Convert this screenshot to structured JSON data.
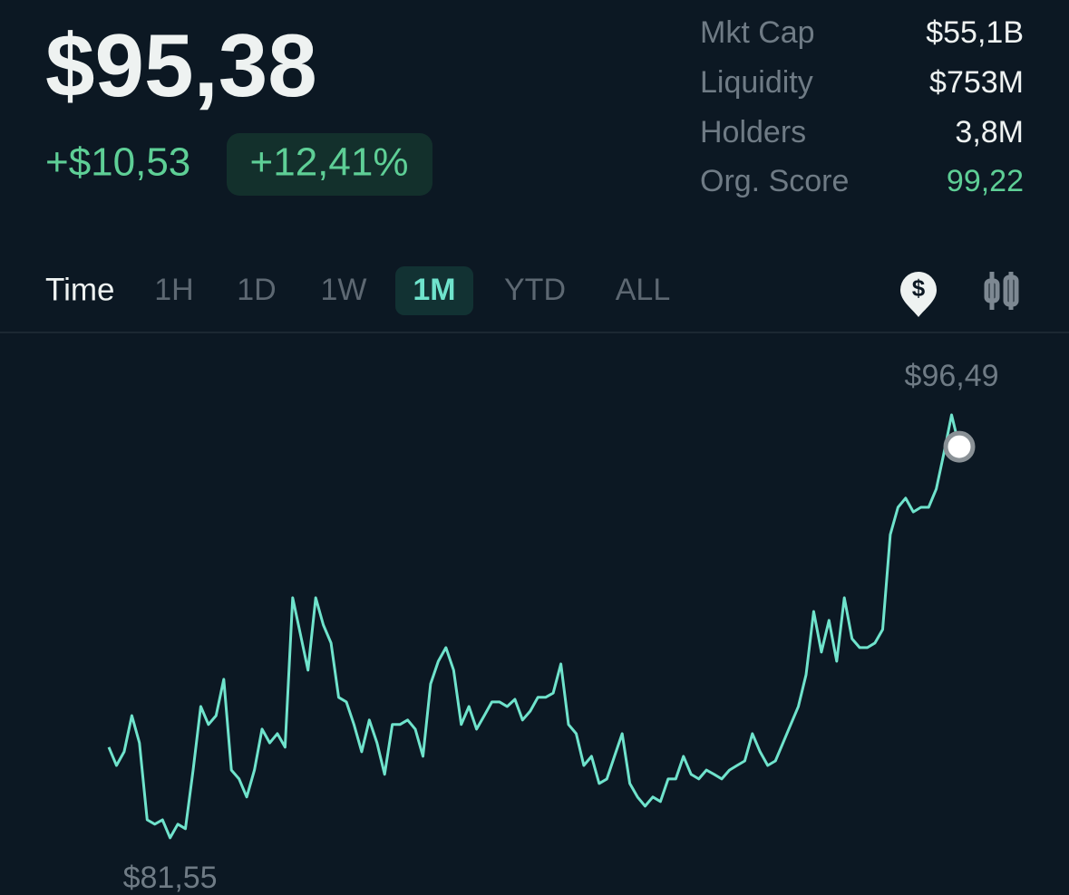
{
  "header": {
    "price": "$95,38",
    "change": "+$10,53",
    "change_pct": "+12,41%"
  },
  "stats": [
    {
      "label": "Mkt Cap",
      "value": "$55,1B"
    },
    {
      "label": "Liquidity",
      "value": "$753M"
    },
    {
      "label": "Holders",
      "value": "3,8M"
    },
    {
      "label": "Org. Score",
      "value": "99,22",
      "color": "#5ecf96"
    }
  ],
  "time_label": "Time",
  "timeframes": [
    "1H",
    "1D",
    "1W",
    "1M",
    "YTD",
    "ALL"
  ],
  "active_timeframe": "1M",
  "chart_data": {
    "type": "line",
    "color": "#6fe3cc",
    "high": {
      "value": 96.49,
      "label": "$96,49"
    },
    "low": {
      "value": 81.55,
      "label": "$81,55"
    },
    "values": [
      84.88,
      84.24,
      84.72,
      85.98,
      85.03,
      82.34,
      82.19,
      82.34,
      81.71,
      82.19,
      82.03,
      84.08,
      86.3,
      85.67,
      85.98,
      87.25,
      84.08,
      83.77,
      83.14,
      84.08,
      85.51,
      85.03,
      85.35,
      84.88,
      90.1,
      88.83,
      87.57,
      90.1,
      89.15,
      88.52,
      86.62,
      86.46,
      85.67,
      84.72,
      85.83,
      85.03,
      83.93,
      85.67,
      85.67,
      85.83,
      85.51,
      84.56,
      87.09,
      87.88,
      88.36,
      87.57,
      85.67,
      86.3,
      85.51,
      85.98,
      86.46,
      86.46,
      86.3,
      86.55,
      85.83,
      86.14,
      86.62,
      86.62,
      86.77,
      87.79,
      85.67,
      85.35,
      84.24,
      84.56,
      83.61,
      83.77,
      84.56,
      85.35,
      83.61,
      83.14,
      82.82,
      83.14,
      82.98,
      83.77,
      83.77,
      84.56,
      83.93,
      83.77,
      84.08,
      83.93,
      83.77,
      84.08,
      84.24,
      84.4,
      85.35,
      84.72,
      84.24,
      84.4,
      85.03,
      85.67,
      86.3,
      87.41,
      89.62,
      88.2,
      89.31,
      87.88,
      90.1,
      88.67,
      88.36,
      88.36,
      88.52,
      88.99,
      92.31,
      93.26,
      93.58,
      93.1,
      93.26,
      93.26,
      93.9,
      95.16,
      96.49,
      95.38
    ]
  }
}
